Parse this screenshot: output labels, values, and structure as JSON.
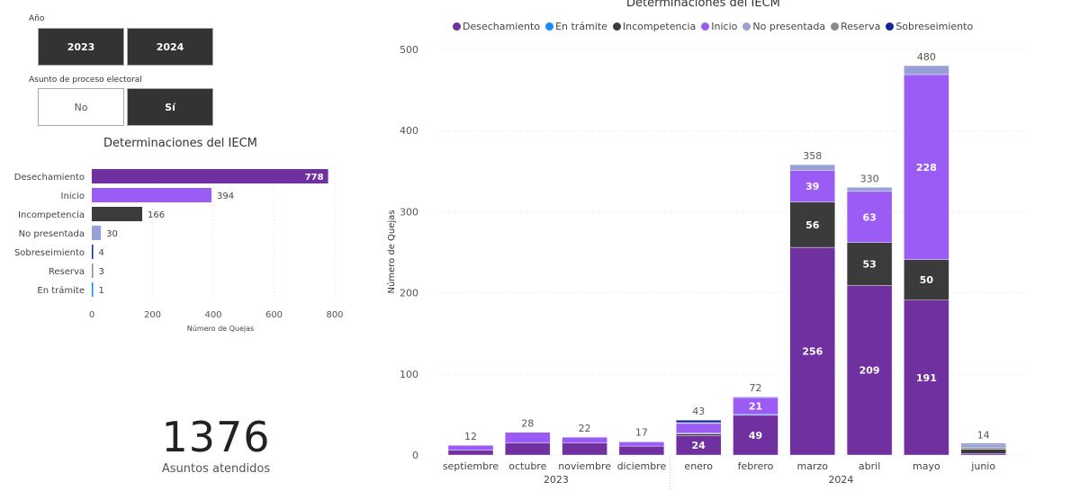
{
  "slicers": {
    "year": {
      "label": "Año",
      "options": [
        "2023",
        "2024"
      ],
      "selected": [
        "2023",
        "2024"
      ]
    },
    "electoral": {
      "label": "Asunto de proceso electoral",
      "options": [
        "No",
        "Sí"
      ],
      "selected": [
        "Sí"
      ]
    }
  },
  "kpi": {
    "value": "1376",
    "caption": "Asuntos atendidos"
  },
  "colors": {
    "Desechamiento": "#7030a0",
    "En trámite": "#118dff",
    "Incompetencia": "#3b3b3b",
    "Inicio": "#9b5cf6",
    "No presentada": "#98a0d8",
    "Reserva": "#8a8a8a",
    "Sobreseimiento": "#12239e"
  },
  "chart_data": [
    {
      "type": "bar",
      "orientation": "horizontal",
      "title": "Determinaciones del IECM",
      "xlabel": "Número de Quejas",
      "ylabel": "",
      "categories": [
        "Desechamiento",
        "Inicio",
        "Incompetencia",
        "No presentada",
        "Sobreseimiento",
        "Reserva",
        "En trámite"
      ],
      "values": [
        778,
        394,
        166,
        30,
        4,
        3,
        1
      ],
      "xlim": [
        0,
        800
      ],
      "xticks": [
        0,
        200,
        400,
        600,
        800
      ],
      "grid": true
    },
    {
      "type": "bar",
      "stacked": true,
      "title": "Determinaciones del IECM",
      "xlabel": "",
      "ylabel": "Número de Quejas",
      "legend": "top",
      "ylim": [
        0,
        500
      ],
      "yticks": [
        0,
        100,
        200,
        300,
        400,
        500
      ],
      "grid": true,
      "categories": [
        "septiembre",
        "octubre",
        "noviembre",
        "diciembre",
        "enero",
        "febrero",
        "marzo",
        "abril",
        "mayo",
        "junio"
      ],
      "year_groups": [
        {
          "label": "2023",
          "count": 4
        },
        {
          "label": "2024",
          "count": 6
        }
      ],
      "series": [
        {
          "name": "Desechamiento",
          "values": [
            6,
            15,
            15,
            11,
            24,
            49,
            256,
            209,
            191,
            2
          ]
        },
        {
          "name": "Incompetencia",
          "values": [
            0,
            0,
            0,
            0,
            2,
            0,
            56,
            53,
            50,
            5
          ]
        },
        {
          "name": "Reserva",
          "values": [
            0,
            0,
            0,
            0,
            1,
            0,
            0,
            0,
            0,
            2
          ]
        },
        {
          "name": "En trámite",
          "values": [
            0,
            0,
            0,
            0,
            0,
            1,
            0,
            0,
            0,
            0
          ]
        },
        {
          "name": "Inicio",
          "values": [
            6,
            13,
            7,
            5,
            12,
            21,
            39,
            63,
            228,
            0
          ]
        },
        {
          "name": "No presentada",
          "values": [
            0,
            0,
            0,
            1,
            1,
            1,
            7,
            5,
            11,
            4
          ]
        },
        {
          "name": "Sobreseimiento",
          "values": [
            0,
            0,
            0,
            0,
            3,
            0,
            0,
            0,
            0,
            1
          ]
        }
      ],
      "totals": [
        12,
        28,
        22,
        17,
        43,
        72,
        358,
        330,
        480,
        14
      ],
      "legend_order": [
        "Desechamiento",
        "En trámite",
        "Incompetencia",
        "Inicio",
        "No presentada",
        "Reserva",
        "Sobreseimiento"
      ]
    }
  ]
}
